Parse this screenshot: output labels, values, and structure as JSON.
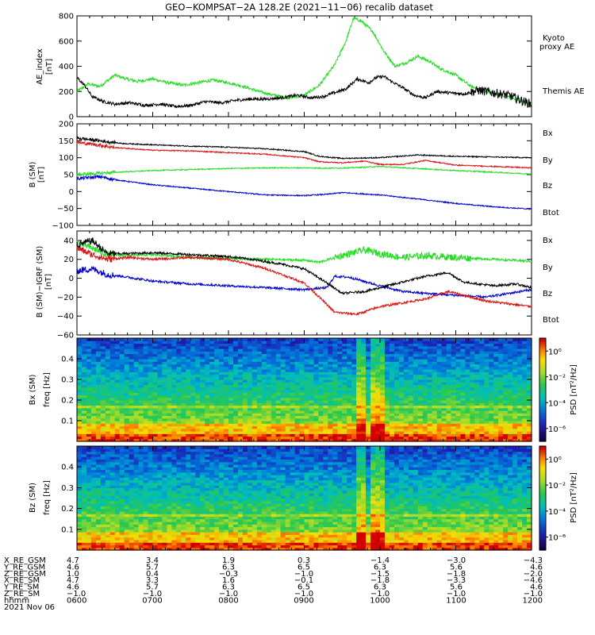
{
  "title": "GEO−KOMPSAT−2A 128.2E (2021−11−06) recalib dataset",
  "colors": {
    "black": "#000000",
    "green": "#22dd22",
    "red": "#dd1111",
    "blue": "#0000cc",
    "textgreen": "#00cc00",
    "textred": "#cc0000",
    "textblue": "#000099"
  },
  "footer": {
    "row_labels": [
      "X_RE_GSM",
      "Y_RE_GSM",
      "Z_RE_GSM",
      "X_RE_SM",
      "Y_RE_SM",
      "Z_RE_SM",
      "hhmm",
      "2021 Nov 06"
    ],
    "columns": [
      [
        "4.7",
        "4.6",
        "1.0",
        "4.7",
        "4.6",
        "−1.0",
        "0600"
      ],
      [
        "3.4",
        "5.7",
        "0.4",
        "3.3",
        "5.7",
        "−1.0",
        "0700"
      ],
      [
        "1.9",
        "6.3",
        "−0.3",
        "1.6",
        "6.3",
        "−1.0",
        "0800"
      ],
      [
        "0.3",
        "6.5",
        "−1.0",
        "−0.1",
        "6.5",
        "−1.0",
        "0900"
      ],
      [
        "−1.4",
        "6.3",
        "−1.5",
        "−1.8",
        "6.3",
        "−1.0",
        "1000"
      ],
      [
        "−3.0",
        "5.6",
        "−1.8",
        "−3.3",
        "5.6",
        "−1.0",
        "1100"
      ],
      [
        "−4.3",
        "4.6",
        "−2.0",
        "−4.6",
        "4.6",
        "−1.0",
        "1200"
      ]
    ]
  },
  "chart_data": [
    {
      "type": "line",
      "ylabel": "AE_index",
      "yunit": "[nT]",
      "ylim": [
        0,
        800
      ],
      "yticks": [
        "0",
        "200",
        "400",
        "600",
        "800"
      ],
      "x": [
        "0600",
        "0700",
        "0800",
        "0900",
        "1000",
        "1100",
        "1200"
      ],
      "xlim_hours": [
        6,
        12
      ],
      "series": [
        {
          "name": "Kyoto proxy AE",
          "label_lines": [
            "Kyoto",
            "proxy AE"
          ],
          "color": "green",
          "points": [
            [
              6.0,
              200
            ],
            [
              6.15,
              260
            ],
            [
              6.3,
              240
            ],
            [
              6.5,
              330
            ],
            [
              6.65,
              300
            ],
            [
              6.8,
              280
            ],
            [
              7.0,
              300
            ],
            [
              7.2,
              270
            ],
            [
              7.4,
              250
            ],
            [
              7.6,
              270
            ],
            [
              7.8,
              290
            ],
            [
              8.0,
              270
            ],
            [
              8.2,
              240
            ],
            [
              8.4,
              200
            ],
            [
              8.6,
              170
            ],
            [
              8.8,
              150
            ],
            [
              9.0,
              170
            ],
            [
              9.2,
              250
            ],
            [
              9.4,
              410
            ],
            [
              9.55,
              600
            ],
            [
              9.65,
              780
            ],
            [
              9.75,
              760
            ],
            [
              9.9,
              680
            ],
            [
              10.05,
              520
            ],
            [
              10.2,
              400
            ],
            [
              10.35,
              430
            ],
            [
              10.5,
              480
            ],
            [
              10.65,
              440
            ],
            [
              10.8,
              380
            ],
            [
              11.0,
              330
            ],
            [
              11.2,
              240
            ],
            [
              11.4,
              200
            ],
            [
              11.6,
              170
            ],
            [
              11.8,
              140
            ],
            [
              12.0,
              100
            ]
          ]
        },
        {
          "name": "Themis AE",
          "label_lines": [
            "Themis AE"
          ],
          "color": "black",
          "points": [
            [
              6.0,
              310
            ],
            [
              6.1,
              250
            ],
            [
              6.2,
              160
            ],
            [
              6.35,
              120
            ],
            [
              6.5,
              100
            ],
            [
              6.7,
              110
            ],
            [
              6.9,
              90
            ],
            [
              7.1,
              100
            ],
            [
              7.3,
              80
            ],
            [
              7.5,
              90
            ],
            [
              7.7,
              120
            ],
            [
              7.9,
              110
            ],
            [
              8.1,
              130
            ],
            [
              8.3,
              140
            ],
            [
              8.5,
              140
            ],
            [
              8.7,
              150
            ],
            [
              8.9,
              170
            ],
            [
              9.1,
              150
            ],
            [
              9.25,
              160
            ],
            [
              9.4,
              190
            ],
            [
              9.55,
              220
            ],
            [
              9.7,
              300
            ],
            [
              9.85,
              270
            ],
            [
              9.95,
              310
            ],
            [
              10.05,
              320
            ],
            [
              10.15,
              280
            ],
            [
              10.3,
              230
            ],
            [
              10.45,
              170
            ],
            [
              10.6,
              150
            ],
            [
              10.75,
              200
            ],
            [
              10.9,
              190
            ],
            [
              11.1,
              180
            ],
            [
              11.3,
              210
            ],
            [
              11.5,
              190
            ],
            [
              11.7,
              170
            ],
            [
              11.9,
              120
            ],
            [
              12.0,
              100
            ]
          ]
        }
      ]
    },
    {
      "type": "line",
      "ylabel": "B (SM)",
      "yunit": "[nT]",
      "ylim": [
        -100,
        200
      ],
      "yticks": [
        "−100",
        "−50",
        "0",
        "50",
        "100",
        "150",
        "200"
      ],
      "xlim_hours": [
        6,
        12
      ],
      "series": [
        {
          "name": "Bx",
          "color": "blue",
          "points": [
            [
              6.0,
              38
            ],
            [
              6.3,
              44
            ],
            [
              6.5,
              35
            ],
            [
              7.0,
              20
            ],
            [
              7.5,
              10
            ],
            [
              8.0,
              0
            ],
            [
              8.5,
              -10
            ],
            [
              9.0,
              -12
            ],
            [
              9.3,
              -8
            ],
            [
              9.5,
              -3
            ],
            [
              10.0,
              -10
            ],
            [
              10.5,
              -22
            ],
            [
              11.0,
              -35
            ],
            [
              11.5,
              -45
            ],
            [
              12.0,
              -52
            ]
          ]
        },
        {
          "name": "By",
          "color": "green",
          "points": [
            [
              6.0,
              50
            ],
            [
              6.3,
              54
            ],
            [
              6.6,
              58
            ],
            [
              7.0,
              62
            ],
            [
              7.5,
              65
            ],
            [
              8.0,
              68
            ],
            [
              8.5,
              70
            ],
            [
              9.0,
              70
            ],
            [
              9.3,
              69
            ],
            [
              9.6,
              70
            ],
            [
              10.0,
              74
            ],
            [
              10.5,
              68
            ],
            [
              11.0,
              62
            ],
            [
              11.5,
              57
            ],
            [
              12.0,
              52
            ]
          ]
        },
        {
          "name": "Bz",
          "color": "red",
          "points": [
            [
              6.0,
              145
            ],
            [
              6.2,
              140
            ],
            [
              6.5,
              130
            ],
            [
              7.0,
              122
            ],
            [
              7.5,
              120
            ],
            [
              8.0,
              115
            ],
            [
              8.5,
              110
            ],
            [
              9.0,
              100
            ],
            [
              9.2,
              88
            ],
            [
              9.5,
              85
            ],
            [
              9.8,
              90
            ],
            [
              10.0,
              80
            ],
            [
              10.3,
              80
            ],
            [
              10.6,
              92
            ],
            [
              10.8,
              85
            ],
            [
              11.0,
              78
            ],
            [
              11.5,
              74
            ],
            [
              12.0,
              70
            ]
          ]
        },
        {
          "name": "Btot",
          "color": "black",
          "points": [
            [
              6.0,
              158
            ],
            [
              6.3,
              150
            ],
            [
              6.6,
              142
            ],
            [
              7.0,
              138
            ],
            [
              7.5,
              134
            ],
            [
              8.0,
              131
            ],
            [
              8.5,
              126
            ],
            [
              9.0,
              118
            ],
            [
              9.2,
              104
            ],
            [
              9.5,
              98
            ],
            [
              10.0,
              100
            ],
            [
              10.5,
              108
            ],
            [
              11.0,
              104
            ],
            [
              11.5,
              102
            ],
            [
              12.0,
              100
            ]
          ]
        }
      ]
    },
    {
      "type": "line",
      "ylabel": "B (SM)−IGRF (SM)",
      "yunit": "[nT]",
      "ylim": [
        -60,
        50
      ],
      "yticks": [
        "−60",
        "−40",
        "−20",
        "0",
        "20",
        "40"
      ],
      "xlim_hours": [
        6,
        12
      ],
      "series": [
        {
          "name": "Bx",
          "color": "blue",
          "points": [
            [
              6.0,
              8
            ],
            [
              6.2,
              10
            ],
            [
              6.4,
              4
            ],
            [
              6.6,
              2
            ],
            [
              7.0,
              -3
            ],
            [
              7.5,
              -6
            ],
            [
              8.0,
              -8
            ],
            [
              8.5,
              -10
            ],
            [
              9.0,
              -12
            ],
            [
              9.3,
              -10
            ],
            [
              9.4,
              2
            ],
            [
              9.6,
              1
            ],
            [
              10.0,
              -8
            ],
            [
              10.3,
              -14
            ],
            [
              10.6,
              -16
            ],
            [
              11.0,
              -18
            ],
            [
              11.4,
              -20
            ],
            [
              11.7,
              -16
            ],
            [
              12.0,
              -12
            ]
          ]
        },
        {
          "name": "By",
          "color": "green",
          "points": [
            [
              6.0,
              38
            ],
            [
              6.2,
              32
            ],
            [
              6.4,
              25
            ],
            [
              6.6,
              24
            ],
            [
              7.0,
              25
            ],
            [
              7.5,
              22
            ],
            [
              8.0,
              21
            ],
            [
              8.5,
              20
            ],
            [
              9.0,
              19
            ],
            [
              9.2,
              17
            ],
            [
              9.5,
              24
            ],
            [
              9.8,
              30
            ],
            [
              10.0,
              26
            ],
            [
              10.3,
              22
            ],
            [
              10.6,
              24
            ],
            [
              11.0,
              22
            ],
            [
              11.5,
              20
            ],
            [
              12.0,
              18
            ]
          ]
        },
        {
          "name": "Bz",
          "color": "red",
          "points": [
            [
              6.0,
              32
            ],
            [
              6.2,
              25
            ],
            [
              6.4,
              20
            ],
            [
              6.7,
              22
            ],
            [
              7.0,
              20
            ],
            [
              7.5,
              22
            ],
            [
              8.0,
              20
            ],
            [
              8.5,
              10
            ],
            [
              9.0,
              -5
            ],
            [
              9.2,
              -20
            ],
            [
              9.4,
              -36
            ],
            [
              9.7,
              -38
            ],
            [
              10.0,
              -30
            ],
            [
              10.3,
              -26
            ],
            [
              10.6,
              -22
            ],
            [
              10.9,
              -14
            ],
            [
              11.1,
              -18
            ],
            [
              11.4,
              -24
            ],
            [
              11.7,
              -27
            ],
            [
              12.0,
              -30
            ]
          ]
        },
        {
          "name": "Btot",
          "color": "black",
          "points": [
            [
              6.0,
              35
            ],
            [
              6.2,
              40
            ],
            [
              6.4,
              26
            ],
            [
              6.6,
              26
            ],
            [
              7.0,
              27
            ],
            [
              7.5,
              25
            ],
            [
              8.0,
              23
            ],
            [
              8.3,
              20
            ],
            [
              8.7,
              15
            ],
            [
              9.0,
              10
            ],
            [
              9.3,
              -5
            ],
            [
              9.5,
              -16
            ],
            [
              9.8,
              -14
            ],
            [
              10.0,
              -10
            ],
            [
              10.3,
              -4
            ],
            [
              10.6,
              2
            ],
            [
              10.9,
              6
            ],
            [
              11.1,
              -4
            ],
            [
              11.5,
              -8
            ],
            [
              11.8,
              -6
            ],
            [
              12.0,
              -10
            ]
          ]
        }
      ]
    },
    {
      "type": "heatmap",
      "ylabel": "Bx (SM)",
      "yunit_label": "freq [Hz]",
      "ylim": [
        0,
        0.5
      ],
      "yticks": [
        "0.1",
        "0.2",
        "0.3",
        "0.4"
      ],
      "xlim_hours": [
        6,
        12
      ],
      "colorbar_label": "PSD [nT²/Hz]",
      "colorbar_ticks": [
        "10⁰",
        "10⁻²",
        "10⁻⁴",
        "10⁻⁶"
      ],
      "colorbar_range_log": [
        -7,
        1
      ],
      "bright_bands_hours": [
        [
          9.7,
          9.8
        ],
        [
          9.85,
          9.95
        ],
        [
          9.95,
          10.05
        ]
      ]
    },
    {
      "type": "heatmap",
      "ylabel": "Bz (SM)",
      "yunit_label": "freq [Hz]",
      "ylim": [
        0,
        0.5
      ],
      "yticks": [
        "0.1",
        "0.2",
        "0.3",
        "0.4"
      ],
      "xlim_hours": [
        6,
        12
      ],
      "colorbar_label": "PSD [nT²/Hz]",
      "colorbar_ticks": [
        "10⁰",
        "10⁻²",
        "10⁻⁴",
        "10⁻⁶"
      ],
      "colorbar_range_log": [
        -7,
        1
      ],
      "bright_bands_hours": [
        [
          9.7,
          9.8
        ],
        [
          9.85,
          9.95
        ],
        [
          9.95,
          10.05
        ]
      ]
    }
  ]
}
